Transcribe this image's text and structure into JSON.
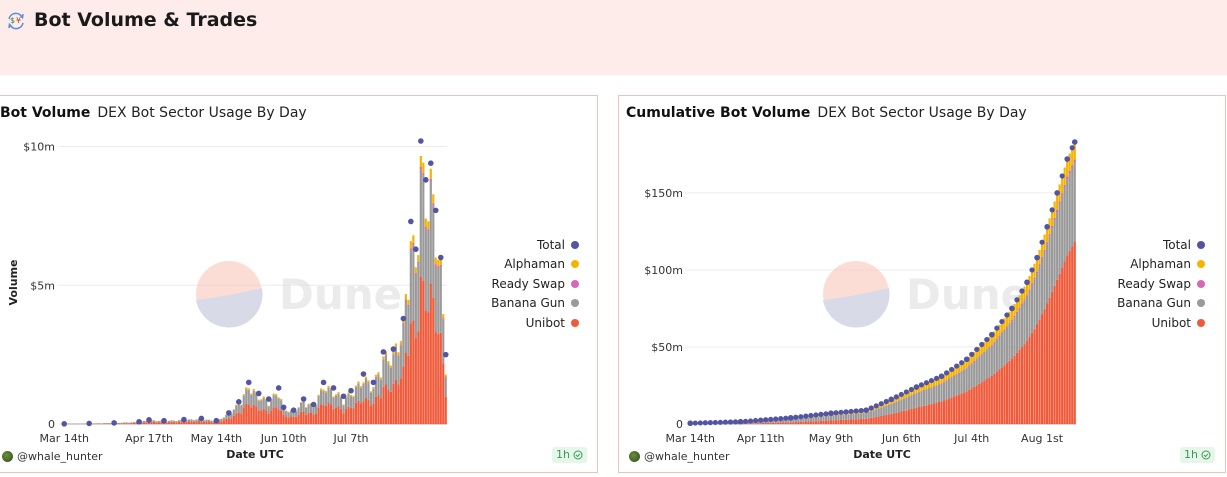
{
  "header": {
    "title": "Bot Volume & Trades",
    "icon": "currency-exchange-icon"
  },
  "panels": [
    {
      "title": "Bot Volume",
      "subtitle": "DEX Bot Sector Usage By Day",
      "user": "@whale_hunter",
      "refresh": "1h"
    },
    {
      "title": "Cumulative Bot Volume",
      "subtitle": "DEX Bot Sector Usage By Day",
      "user": "@whale_hunter",
      "refresh": "1h"
    }
  ],
  "watermark": "Dune",
  "colors": {
    "Total": "#5155a3",
    "Alphaman": "#f4b400",
    "Ready Swap": "#d369b8",
    "Banana Gun": "#9a9a9a",
    "Unibot": "#f05a3a"
  },
  "chart_data": [
    {
      "type": "bar",
      "stacked": true,
      "title": "Bot Volume",
      "subtitle": "DEX Bot Sector Usage By Day",
      "xlabel": "Date UTC",
      "ylabel": "Volume",
      "x_ticks": [
        "Mar 14th",
        "Apr 17th",
        "May 14th",
        "Jun 10th",
        "Jul 7th"
      ],
      "y_ticks": [
        "0",
        "$5m",
        "$10m"
      ],
      "y_tick_values": [
        0,
        5000000,
        10000000
      ],
      "ylim": [
        0,
        10200000
      ],
      "legend": [
        "Total",
        "Alphaman",
        "Ready Swap",
        "Banana Gun",
        "Unibot"
      ],
      "legend_position": "right",
      "grid": true,
      "days": 154,
      "x_tick_day_index": [
        0,
        34,
        61,
        88,
        115
      ],
      "total_markers": [
        {
          "day": 0,
          "value": 5000
        },
        {
          "day": 10,
          "value": 20000
        },
        {
          "day": 20,
          "value": 40000
        },
        {
          "day": 30,
          "value": 80000
        },
        {
          "day": 34,
          "value": 150000
        },
        {
          "day": 40,
          "value": 120000
        },
        {
          "day": 48,
          "value": 160000
        },
        {
          "day": 55,
          "value": 200000
        },
        {
          "day": 61,
          "value": 120000
        },
        {
          "day": 66,
          "value": 400000
        },
        {
          "day": 70,
          "value": 800000
        },
        {
          "day": 74,
          "value": 1500000
        },
        {
          "day": 78,
          "value": 1100000
        },
        {
          "day": 82,
          "value": 900000
        },
        {
          "day": 86,
          "value": 1300000
        },
        {
          "day": 88,
          "value": 600000
        },
        {
          "day": 92,
          "value": 500000
        },
        {
          "day": 96,
          "value": 900000
        },
        {
          "day": 100,
          "value": 700000
        },
        {
          "day": 104,
          "value": 1500000
        },
        {
          "day": 108,
          "value": 1300000
        },
        {
          "day": 112,
          "value": 1000000
        },
        {
          "day": 115,
          "value": 1200000
        },
        {
          "day": 120,
          "value": 1800000
        },
        {
          "day": 124,
          "value": 1500000
        },
        {
          "day": 128,
          "value": 2600000
        },
        {
          "day": 132,
          "value": 2700000
        },
        {
          "day": 136,
          "value": 3800000
        },
        {
          "day": 139,
          "value": 7300000
        },
        {
          "day": 141,
          "value": 6300000
        },
        {
          "day": 143,
          "value": 10200000
        },
        {
          "day": 145,
          "value": 8800000
        },
        {
          "day": 147,
          "value": 9400000
        },
        {
          "day": 149,
          "value": 7700000
        },
        {
          "day": 151,
          "value": 6000000
        },
        {
          "day": 153,
          "value": 2500000
        }
      ],
      "series_share": {
        "Unibot": 0.55,
        "Banana Gun": 0.4,
        "Ready Swap": 0.01,
        "Alphaman": 0.04
      }
    },
    {
      "type": "bar",
      "stacked": true,
      "cumulative": true,
      "title": "Cumulative Bot Volume",
      "subtitle": "DEX Bot Sector Usage By Day",
      "xlabel": "Date UTC",
      "ylabel": "",
      "x_ticks": [
        "Mar 14th",
        "Apr 11th",
        "May 9th",
        "Jun 6th",
        "Jul 4th",
        "Aug 1st"
      ],
      "y_ticks": [
        "0",
        "$50m",
        "$100m",
        "$150m"
      ],
      "y_tick_values": [
        0,
        50000000,
        100000000,
        150000000
      ],
      "ylim": [
        0,
        185000000
      ],
      "legend": [
        "Total",
        "Alphaman",
        "Ready Swap",
        "Banana Gun",
        "Unibot"
      ],
      "legend_position": "right",
      "grid": true,
      "days": 154,
      "x_tick_day_index": [
        0,
        28,
        56,
        84,
        112,
        140
      ],
      "total_markers": [
        {
          "day": 0,
          "value": 500000
        },
        {
          "day": 20,
          "value": 1500000
        },
        {
          "day": 40,
          "value": 4000000
        },
        {
          "day": 56,
          "value": 7000000
        },
        {
          "day": 70,
          "value": 9000000
        },
        {
          "day": 80,
          "value": 16000000
        },
        {
          "day": 90,
          "value": 24000000
        },
        {
          "day": 100,
          "value": 31000000
        },
        {
          "day": 110,
          "value": 42000000
        },
        {
          "day": 120,
          "value": 58000000
        },
        {
          "day": 128,
          "value": 75000000
        },
        {
          "day": 134,
          "value": 92000000
        },
        {
          "day": 138,
          "value": 108000000
        },
        {
          "day": 142,
          "value": 128000000
        },
        {
          "day": 146,
          "value": 150000000
        },
        {
          "day": 150,
          "value": 172000000
        },
        {
          "day": 153,
          "value": 183000000
        }
      ],
      "series_share_end": {
        "Unibot": 0.65,
        "Banana Gun": 0.28,
        "Ready Swap": 0.01,
        "Alphaman": 0.06
      }
    }
  ]
}
